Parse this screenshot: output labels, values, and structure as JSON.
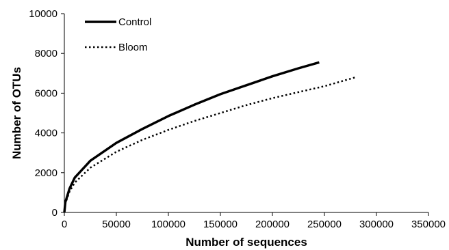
{
  "chart_data": {
    "type": "line",
    "title": "",
    "xlabel": "Number of sequences",
    "ylabel": "Number of OTUs",
    "xlim": [
      0,
      350000
    ],
    "ylim": [
      0,
      10000
    ],
    "x_ticks": [
      "0",
      "50000",
      "100000",
      "150000",
      "200000",
      "250000",
      "300000",
      "350000"
    ],
    "y_ticks": [
      "0",
      "2000",
      "4000",
      "6000",
      "8000",
      "10000"
    ],
    "grid": false,
    "legend_position": "top-left",
    "series": [
      {
        "name": "Control",
        "style": "solid",
        "color": "#000000",
        "x": [
          0,
          1000,
          5000,
          10000,
          25000,
          50000,
          75000,
          100000,
          125000,
          150000,
          175000,
          200000,
          225000,
          245000
        ],
        "values": [
          0,
          520,
          1200,
          1750,
          2600,
          3500,
          4200,
          4850,
          5420,
          5950,
          6400,
          6850,
          7250,
          7550
        ]
      },
      {
        "name": "Bloom",
        "style": "dotted",
        "color": "#000000",
        "x": [
          0,
          1000,
          5000,
          10000,
          25000,
          50000,
          75000,
          100000,
          125000,
          150000,
          175000,
          200000,
          225000,
          250000,
          280000
        ],
        "values": [
          0,
          450,
          1050,
          1500,
          2250,
          3050,
          3650,
          4150,
          4600,
          5000,
          5400,
          5750,
          6050,
          6350,
          6800
        ]
      }
    ]
  }
}
